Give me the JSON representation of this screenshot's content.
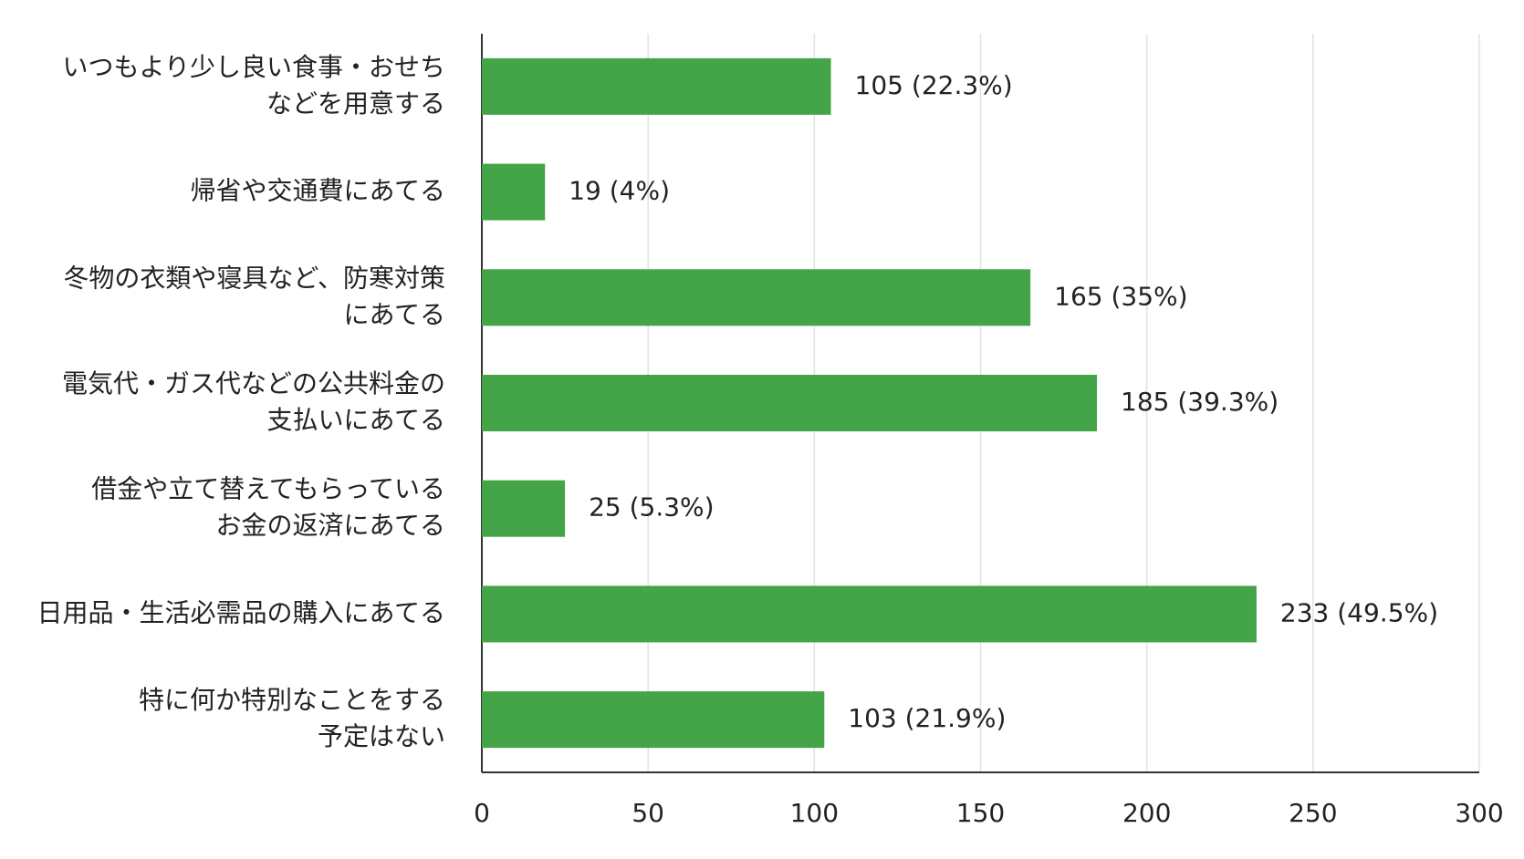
{
  "chart_data": {
    "type": "bar",
    "orientation": "horizontal",
    "categories": [
      "いつもより少し良い食事・おせち\nなどを用意する",
      "帰省や交通費にあてる",
      "冬物の衣類や寝具など、防寒対策\nにあてる",
      "電気代・ガス代などの公共料金の\n支払いにあてる",
      "借金や立て替えてもらっている\nお金の返済にあてる",
      "日用品・生活必需品の購入にあてる",
      "特に何か特別なことをする\n予定はない"
    ],
    "values": [
      105,
      19,
      165,
      185,
      25,
      233,
      103
    ],
    "value_labels": [
      "105 (22.3%)",
      "19 (4%)",
      "165 (35%)",
      "185 (39.3%)",
      "25 (5.3%)",
      "233 (49.5%)",
      "103 (21.9%)"
    ],
    "color": "#43a548",
    "xlim": [
      0,
      300
    ],
    "xticks": [
      0,
      50,
      100,
      150,
      200,
      250,
      300
    ],
    "grid": true
  }
}
